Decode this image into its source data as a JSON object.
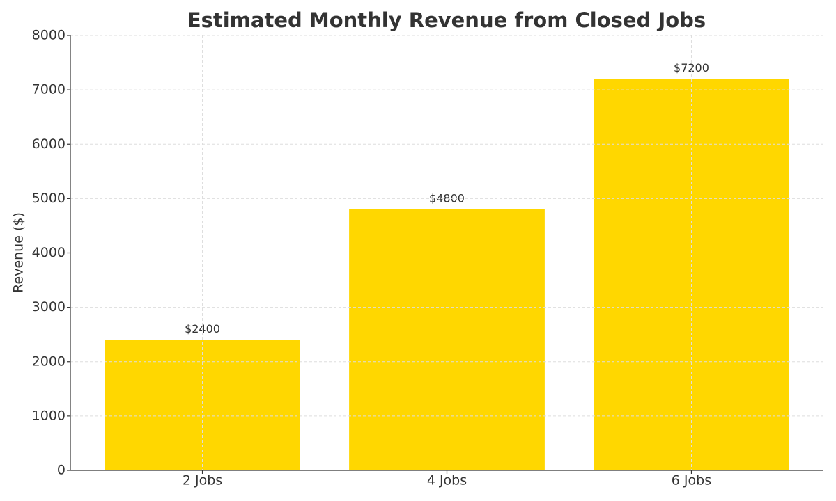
{
  "chart_data": {
    "type": "bar",
    "title": "Estimated Monthly Revenue from Closed Jobs",
    "ylabel": "Revenue ($)",
    "categories": [
      "2 Jobs",
      "4 Jobs",
      "6 Jobs"
    ],
    "values": [
      2400,
      4800,
      7200
    ],
    "value_labels": [
      "$2400",
      "$4800",
      "$7200"
    ],
    "color": "#ffd700",
    "ylim": [
      0,
      8000
    ],
    "yticks": [
      0,
      1000,
      2000,
      3000,
      4000,
      5000,
      6000,
      7000,
      8000
    ],
    "grid": true
  }
}
